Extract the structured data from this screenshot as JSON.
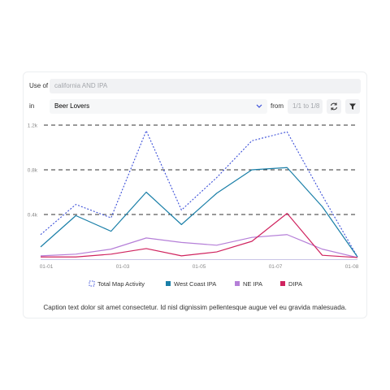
{
  "form": {
    "use_label": "Use of",
    "query_placeholder": "california AND IPA",
    "in_label": "in",
    "audience": "Beer Lovers",
    "from_label": "from",
    "date_range": "1/1 to 1/8"
  },
  "chart_data": {
    "type": "line",
    "xtick_labels": [
      "01-01",
      "01-03",
      "01-05",
      "01-07",
      "01-08"
    ],
    "ylim": [
      0,
      1200
    ],
    "yticks": [
      {
        "value": 400,
        "label": "0.4k"
      },
      {
        "value": 800,
        "label": "0.8k"
      },
      {
        "value": 1200,
        "label": "1.2k"
      }
    ],
    "grid": true,
    "series": [
      {
        "name": "Total Map Activity",
        "color": "#3b4fd8",
        "line_style": "dotted",
        "values": [
          220,
          490,
          370,
          1150,
          440,
          730,
          1060,
          1140,
          570,
          20
        ]
      },
      {
        "name": "West Coast IPA",
        "color": "#1a7fa8",
        "line_style": "solid",
        "values": [
          110,
          390,
          250,
          600,
          310,
          590,
          800,
          820,
          470,
          20
        ]
      },
      {
        "name": "NE IPA",
        "color": "#b57fd8",
        "line_style": "solid",
        "values": [
          30,
          45,
          90,
          190,
          150,
          125,
          195,
          220,
          90,
          15
        ]
      },
      {
        "name": "DIPA",
        "color": "#d0245f",
        "line_style": "solid",
        "values": [
          20,
          20,
          45,
          95,
          30,
          65,
          160,
          410,
          35,
          15
        ]
      }
    ],
    "caption": "Caption text dolor sit amet consectetur. Id nisl dignissim pellentesque augue vel eu gravida malesuada."
  }
}
